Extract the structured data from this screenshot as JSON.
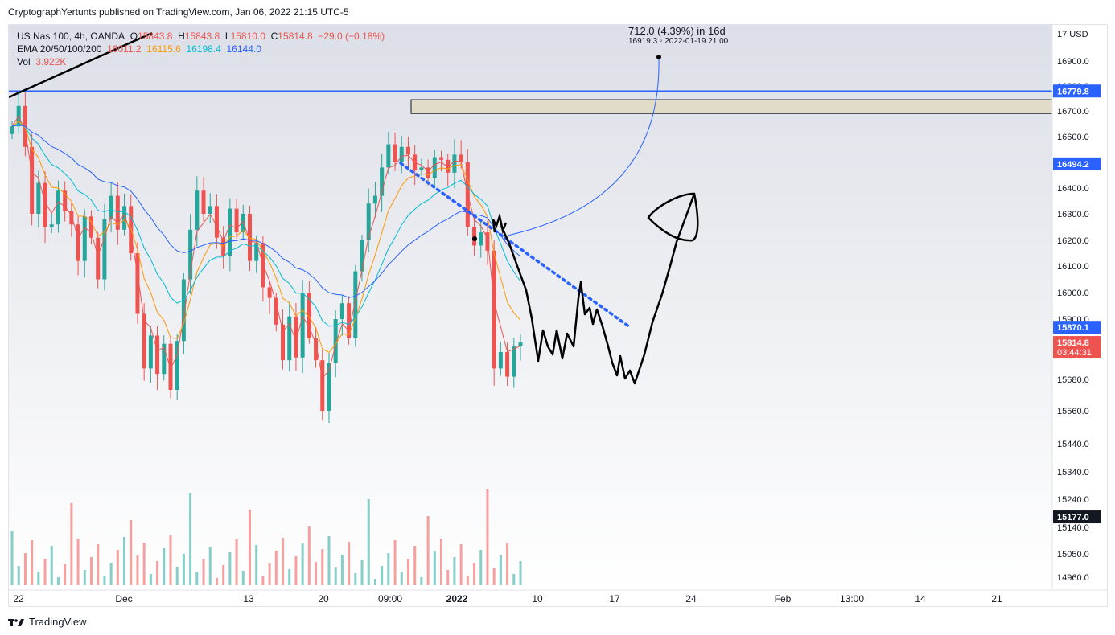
{
  "header": {
    "text": "CryptographYertunts published on TradingView.com, Jan 06, 2022 21:15 UTC-5"
  },
  "legend": {
    "symbol": "US Nas 100, 4h, OANDA",
    "o_label": "O",
    "o_value": "15843.8",
    "h_label": "H",
    "h_value": "15843.8",
    "l_label": "L",
    "l_value": "15810.0",
    "c_label": "C",
    "c_value": "15814.8",
    "change": "−29.0 (−0.18%)",
    "ema_label": "EMA 20/50/100/200",
    "ema20": "16011.2",
    "ema50": "16115.6",
    "ema100": "16198.4",
    "ema200": "16144.0",
    "vol_label": "Vol",
    "vol_value": "3.922K"
  },
  "measure": {
    "title": "712.0 (4.39%) in 16d",
    "sub": "16919.3  ◦ 2022-01-19  21:00"
  },
  "currency_label": "17 USD",
  "footer": {
    "brand": "TradingView",
    "logo_icon": "tradingview-logo-icon"
  },
  "colors": {
    "up": "#26a69a",
    "down": "#ef5350",
    "ema20": "#ef5350",
    "ema50": "#ff9800",
    "ema100": "#00bcd4",
    "ema200": "#2962ff",
    "hline": "#2962ff",
    "drawing": "#000000",
    "dotted": "#2962ff",
    "zone_fill": "#e0dcc8"
  },
  "chart_data": {
    "type": "candlestick",
    "symbol": "US Nas 100, 4h, OANDA",
    "ylim": [
      14920,
      17000
    ],
    "x_ticks": [
      "22",
      "Dec",
      "13",
      "20",
      "09:00",
      "2022",
      "10",
      "17",
      "24",
      "Feb",
      "13:00",
      "14",
      "21"
    ],
    "y_ticks": [
      "16900.0",
      "16800.0",
      "16700.0",
      "16600.0",
      "16400.0",
      "16300.0",
      "16200.0",
      "16100.0",
      "16000.0",
      "15900.0",
      "15680.0",
      "15560.0",
      "15440.0",
      "15340.0",
      "15240.0",
      "15140.0",
      "15050.0",
      "14960.0"
    ],
    "price_labels": [
      {
        "value": 16779.8,
        "text": "16779.8",
        "color": "#2962ff"
      },
      {
        "value": 16494.2,
        "text": "16494.2",
        "color": "#2962ff"
      },
      {
        "value": 15870.1,
        "text": "15870.1",
        "color": "#2962ff"
      },
      {
        "value": 15814.8,
        "text": "15814.8",
        "sub": "03:44:31",
        "color": "#ef5350"
      },
      {
        "value": 15177.0,
        "text": "15177.0",
        "color": "#131722"
      }
    ],
    "horizontal_line": 16779.8,
    "zone": {
      "from_price": 16690,
      "to_price": 16745
    },
    "close_path": [
      16640,
      16720,
      16560,
      16300,
      16420,
      16250,
      16260,
      16390,
      16310,
      16260,
      16120,
      16290,
      16210,
      16050,
      16280,
      16370,
      16240,
      16330,
      16150,
      15920,
      15720,
      15840,
      15700,
      15810,
      15640,
      15820,
      16050,
      16240,
      16390,
      16300,
      16330,
      16210,
      16140,
      16320,
      16230,
      16300,
      16120,
      16190,
      16020,
      15980,
      15880,
      15750,
      15910,
      15760,
      16000,
      15830,
      15750,
      15560,
      15740,
      15900,
      15960,
      15830,
      16080,
      16200,
      16340,
      16370,
      16480,
      16570,
      16500,
      16560,
      16530,
      16470,
      16480,
      16440,
      16520,
      16510,
      16460,
      16530,
      16500,
      16250,
      16180,
      16230,
      16160,
      15720,
      15780,
      15690,
      15800,
      15814.8
    ]
  }
}
